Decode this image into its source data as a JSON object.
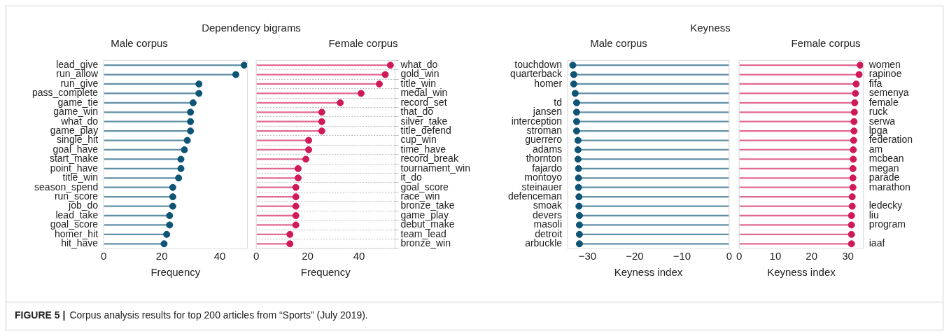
{
  "chart_data": [
    {
      "type": "lollipop",
      "orientation": "horizontal",
      "title": "Dependency bigrams",
      "subtitle": "Male corpus",
      "xlabel": "Frequency",
      "categories": [
        "lead_give",
        "run_allow",
        "run_give",
        "pass_complete",
        "game_tie",
        "game_win",
        "what_do",
        "game_play",
        "single_hit",
        "goal_have",
        "start_make",
        "point_have",
        "title_win",
        "season_spend",
        "run_score",
        "job_do",
        "lead_take",
        "goal_score",
        "homer_hit",
        "hit_have"
      ],
      "series": [
        {
          "color": "#0d5475",
          "values": [
            48.4,
            45.5,
            32.8,
            32.8,
            30.8,
            29.9,
            29.9,
            29.9,
            28.8,
            27.8,
            26.6,
            26.6,
            25.8,
            23.8,
            23.8,
            23.8,
            22.7,
            22.7,
            21.7,
            20.8
          ]
        }
      ],
      "xlim": [
        0,
        49.5
      ],
      "xticks": [
        0,
        20,
        40
      ],
      "marker": "circle",
      "annotations": [
        "FIGURE 5 |",
        "Corpus analysis results for top 200 articles from “Sports” (July 2019)."
      ]
    },
    {
      "type": "lollipop",
      "orientation": "horizontal",
      "subtitle": "Female corpus",
      "xlabel": "Frequency",
      "categories": [
        "what_do",
        "gold_win",
        "title_win",
        "medal_win",
        "record_set",
        "that_do",
        "silver_take",
        "title_defend",
        "cup_win",
        "time_have",
        "record_break",
        "tournament_win",
        "it_do",
        "goal_score",
        "race_win",
        "bronze_take",
        "game_play",
        "debut_make",
        "team_lead",
        "bronze_win"
      ],
      "series": [
        {
          "color": "#d0195a",
          "values": [
            52.2,
            50.2,
            47.9,
            40.8,
            32.7,
            25.5,
            25.5,
            25.5,
            20.4,
            20.4,
            19.3,
            16.3,
            16.3,
            15.4,
            15.4,
            15.4,
            15.4,
            15.4,
            13.1,
            13.1
          ]
        }
      ],
      "xlim": [
        0,
        54
      ],
      "xticks": [
        0,
        20,
        40
      ],
      "marker": "circle",
      "grid": "y"
    },
    {
      "type": "lollipop",
      "orientation": "horizontal",
      "title": "Keyness",
      "subtitle": "Male corpus",
      "xlabel": "Keyness index",
      "categories": [
        "touchdown",
        "quarterback",
        "homer",
        null,
        "td",
        "jansen",
        "interception",
        "stroman",
        "guerrero",
        "adams",
        "thornton",
        "fajardo",
        "montoyo",
        "steinauer",
        "defenceman",
        "smoak",
        "devers",
        "masoli",
        "detroit",
        "arbuckle"
      ],
      "series": [
        {
          "color": "#0d5475",
          "values": [
            -33.1,
            -32.9,
            -32.9,
            -32.6,
            -32.3,
            -32.3,
            -32.3,
            -32.3,
            -32.0,
            -32.0,
            -32.0,
            -31.9,
            -31.9,
            -31.9,
            -31.8,
            -31.8,
            -31.7,
            -31.7,
            -31.7,
            -31.7
          ]
        }
      ],
      "xlim": [
        -34.2,
        0
      ],
      "xticks": [
        {
          "value": -30,
          "label": "−30"
        },
        {
          "value": -20,
          "label": "−20"
        },
        {
          "value": -10,
          "label": "−10"
        },
        0
      ],
      "marker": "circle"
    },
    {
      "type": "lollipop",
      "orientation": "horizontal",
      "subtitle": "Female corpus",
      "xlabel": "Keyness index",
      "categories": [
        "women",
        "rapinoe",
        "fifa",
        "semenya",
        "female",
        "ruck",
        "serwa",
        "lpga",
        "federation",
        "am",
        "mcbean",
        "megan",
        "parade",
        "marathon",
        null,
        "ledecky",
        "liu",
        "program",
        null,
        "iaaf"
      ],
      "series": [
        {
          "color": "#d0195a",
          "values": [
            33.4,
            33.1,
            32.3,
            32.1,
            31.9,
            31.8,
            31.7,
            31.7,
            31.6,
            31.5,
            31.5,
            31.4,
            31.4,
            31.4,
            31.2,
            31.2,
            31.0,
            31.0,
            31.0,
            31.0
          ]
        }
      ],
      "xlim": [
        0,
        34.3
      ],
      "xticks": [
        0,
        10,
        20,
        30
      ],
      "marker": "circle"
    }
  ]
}
